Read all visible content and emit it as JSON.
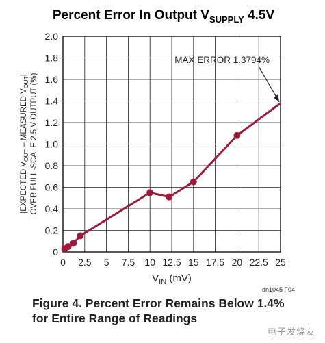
{
  "chart_data": {
    "type": "line",
    "title_prefix": "Percent Error In Output V",
    "title_sub": "SUPPLY",
    "title_suffix": " 4.5V",
    "ylabel_line1_a": "|EXPECTED V",
    "ylabel_line1_sub1": "OUT",
    "ylabel_line1_b": " – MEASURED V",
    "ylabel_line1_sub2": "OUT",
    "ylabel_line1_c": "|",
    "ylabel_line2": "OVER FULL-SCALE 2.5 V OUTPUT (%)",
    "xlabel_main": "V",
    "xlabel_sub": "IN",
    "xlabel_unit": " (mV)",
    "xlim": [
      0,
      25
    ],
    "ylim": [
      0,
      2.0
    ],
    "xticks": [
      0,
      2.5,
      5,
      7.5,
      10,
      12.5,
      15,
      17.5,
      20,
      22.5,
      25
    ],
    "xtick_labels": [
      "0",
      "2.5",
      "5",
      "7.5",
      "10",
      "12.5",
      "15",
      "17.5",
      "20",
      "22.5",
      "25"
    ],
    "yticks": [
      0,
      0.2,
      0.4,
      0.6,
      0.8,
      1.0,
      1.2,
      1.4,
      1.6,
      1.8,
      2.0
    ],
    "ytick_labels": [
      "0",
      "0.2",
      "0.4",
      "0.6",
      "0.8",
      "1.0",
      "1.2",
      "1.4",
      "1.6",
      "1.8",
      "2.0"
    ],
    "grid": true,
    "series": [
      {
        "color": "#9e1a3a",
        "x": [
          0.2,
          0.6,
          1.2,
          2.0,
          10.0,
          12.2,
          15.0,
          20.0,
          25.0
        ],
        "y": [
          0.03,
          0.05,
          0.08,
          0.15,
          0.55,
          0.51,
          0.65,
          1.08,
          1.3794
        ],
        "markers": [
          true,
          true,
          true,
          true,
          true,
          true,
          true,
          true,
          false
        ]
      }
    ],
    "annotation": {
      "text": "MAX ERROR 1.3794%",
      "x": 25,
      "y": 1.3794
    },
    "figure_id": "dn1045 F04"
  },
  "caption": {
    "line1": "Figure 4. Percent Error Remains Below 1.4%",
    "line2": "for Entire Range of Readings"
  },
  "watermark": "电子发烧友"
}
